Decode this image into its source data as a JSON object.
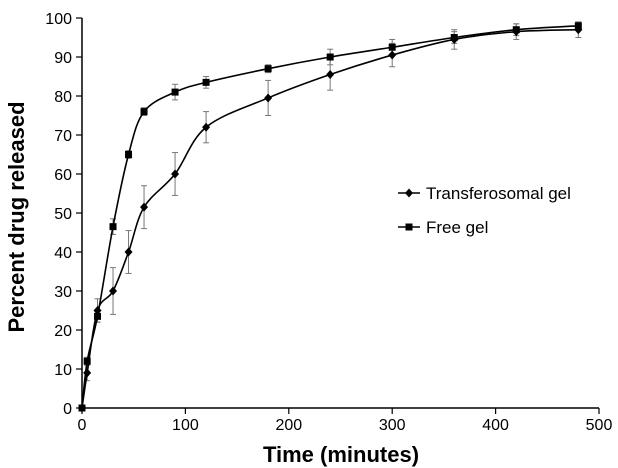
{
  "chart_data": {
    "type": "line",
    "title": "",
    "xlabel": "Time (minutes)",
    "ylabel": "Percent drug released",
    "xlim": [
      0,
      500
    ],
    "ylim": [
      0,
      100
    ],
    "xticks": [
      0,
      100,
      200,
      300,
      400,
      500
    ],
    "yticks": [
      0,
      10,
      20,
      30,
      40,
      50,
      60,
      70,
      80,
      90,
      100
    ],
    "grid": false,
    "legend_position": "right-center",
    "series": [
      {
        "name": "Transferosomal gel",
        "marker": "diamond",
        "color": "#000000",
        "x": [
          0,
          5,
          15,
          30,
          45,
          60,
          90,
          120,
          180,
          240,
          300,
          360,
          420,
          480
        ],
        "y": [
          0,
          9,
          25,
          30,
          40,
          51.5,
          60,
          72,
          79.5,
          85.5,
          90.5,
          94.5,
          96.5,
          97
        ],
        "err": [
          0,
          2,
          3,
          6,
          5.5,
          5.5,
          5.5,
          4,
          4.5,
          4,
          3,
          2.5,
          2,
          2
        ]
      },
      {
        "name": "Free gel",
        "marker": "square",
        "color": "#000000",
        "x": [
          0,
          5,
          15,
          30,
          45,
          60,
          90,
          120,
          180,
          240,
          300,
          360,
          420,
          480
        ],
        "y": [
          0,
          12,
          23.5,
          46.5,
          65,
          76,
          81,
          83.5,
          87,
          90,
          92.5,
          95,
          97,
          98
        ],
        "err": [
          0,
          1,
          1.5,
          2,
          1,
          1,
          2,
          1.5,
          1,
          2,
          2,
          1.5,
          1.5,
          1
        ]
      }
    ]
  }
}
